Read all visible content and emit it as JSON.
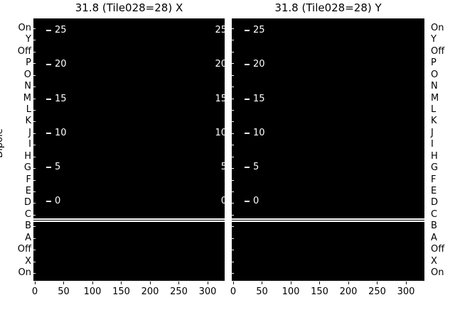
{
  "titles": {
    "left": "31.8 (Tile028=28) X",
    "right": "31.8 (Tile028=28) Y"
  },
  "y_axis": {
    "label": "Dipole",
    "row_labels": [
      "On",
      "Y",
      "Off",
      "P",
      "O",
      "N",
      "M",
      "L",
      "K",
      "J",
      "I",
      "H",
      "G",
      "F",
      "E",
      "D",
      "C",
      "B",
      "A",
      "Off",
      "X",
      "On"
    ]
  },
  "x_axis": {
    "ticks": [
      "0",
      "50",
      "100",
      "150",
      "200",
      "250",
      "300"
    ]
  },
  "inner_ticks": {
    "values": [
      "25",
      "20",
      "15",
      "10",
      "5",
      "0"
    ]
  },
  "separator": {
    "between_rows": [
      "C",
      "B"
    ]
  },
  "colors": {
    "figure_bg": "#ffffff",
    "panel_bg": "#000000",
    "axis_text": "#000000",
    "inner_text": "#ffffff",
    "separator_line": "#ffffff"
  },
  "chart_data": [
    {
      "type": "heatmap",
      "title": "31.8 (Tile028=28) X",
      "xlabel": "",
      "ylabel": "Dipole",
      "x_ticks": [
        0,
        50,
        100,
        150,
        200,
        250,
        300
      ],
      "x_range": [
        -3,
        330
      ],
      "y_categories": [
        "On",
        "Y",
        "Off",
        "P",
        "O",
        "N",
        "M",
        "L",
        "K",
        "J",
        "I",
        "H",
        "G",
        "F",
        "E",
        "D",
        "C",
        "B",
        "A",
        "Off",
        "X",
        "On"
      ],
      "inner_axis_tick_labels": [
        25,
        20,
        15,
        10,
        5,
        0
      ],
      "values": "uniform minimum (entire panel rendered black, no visible variation)",
      "separator_line_after_row": "C",
      "legend": "none",
      "grid": false
    },
    {
      "type": "heatmap",
      "title": "31.8 (Tile028=28) Y",
      "xlabel": "",
      "ylabel": "Dipole",
      "x_ticks": [
        0,
        50,
        100,
        150,
        200,
        250,
        300
      ],
      "x_range": [
        -3,
        330
      ],
      "y_categories": [
        "On",
        "Y",
        "Off",
        "P",
        "O",
        "N",
        "M",
        "L",
        "K",
        "J",
        "I",
        "H",
        "G",
        "F",
        "E",
        "D",
        "C",
        "B",
        "A",
        "Off",
        "X",
        "On"
      ],
      "inner_axis_tick_labels": [
        25,
        20,
        15,
        10,
        5,
        0
      ],
      "values": "uniform minimum (entire panel rendered black, no visible variation)",
      "separator_line_after_row": "C",
      "legend": "none",
      "grid": false
    }
  ]
}
